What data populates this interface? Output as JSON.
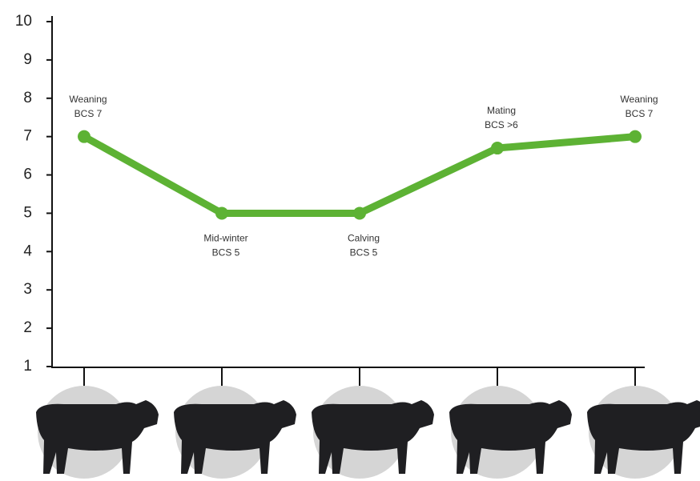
{
  "chart_data": {
    "type": "line",
    "categories": [
      null,
      null,
      null,
      null,
      null
    ],
    "values": [
      7,
      5,
      5,
      6.7,
      7
    ],
    "annotations": [
      [
        "Weaning",
        "BCS 7"
      ],
      [
        "Mid-winter",
        "BCS 5"
      ],
      [
        "Calving",
        "BCS 5"
      ],
      [
        "Mating",
        "BCS >6"
      ],
      [
        "Weaning",
        "BCS 7"
      ]
    ],
    "color": "#5db234",
    "ylim": [
      1,
      10
    ],
    "yticks": [
      1,
      2,
      3,
      4,
      5,
      6,
      7,
      8,
      9,
      10
    ],
    "grid": false
  }
}
